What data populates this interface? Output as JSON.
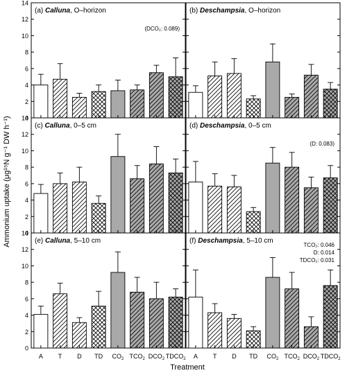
{
  "figure": {
    "ylabel": "Ammonium uptake (μg¹⁵N g⁻¹ DW h⁻¹)",
    "xlabel": "Treatment"
  },
  "chart_data": [
    {
      "type": "bar",
      "panel": "(a)",
      "species": "Calluna",
      "depth": "O–horizon",
      "annotation": [
        "(DCO₂: 0.089)"
      ],
      "categories": [
        "A",
        "T",
        "D",
        "TD",
        "CO₂",
        "TCO₂",
        "DCO₂",
        "TDCO₂"
      ],
      "values": [
        4.0,
        4.7,
        2.5,
        3.2,
        3.3,
        3.4,
        5.5,
        5.0
      ],
      "errors": [
        1.3,
        1.9,
        0.5,
        0.8,
        1.3,
        0.6,
        0.9,
        2.3
      ],
      "ylim": [
        0,
        14
      ],
      "yticks": [
        0,
        2,
        4,
        6,
        8,
        10,
        12,
        14
      ]
    },
    {
      "type": "bar",
      "panel": "(b)",
      "species": "Deschampsia",
      "depth": "O–horizon",
      "annotation": [],
      "categories": [
        "A",
        "T",
        "D",
        "TD",
        "CO₂",
        "TCO₂",
        "DCO₂",
        "TDCO₂"
      ],
      "values": [
        3.1,
        5.1,
        5.4,
        2.3,
        6.8,
        2.5,
        5.2,
        3.5
      ],
      "errors": [
        0.8,
        1.7,
        1.8,
        0.4,
        2.2,
        0.4,
        1.3,
        0.8
      ],
      "ylim": [
        0,
        14
      ],
      "yticks": [
        0,
        2,
        4,
        6,
        8,
        10,
        12,
        14
      ]
    },
    {
      "type": "bar",
      "panel": "(c)",
      "species": "Calluna",
      "depth": "0–5 cm",
      "annotation": [],
      "categories": [
        "A",
        "T",
        "D",
        "TD",
        "CO₂",
        "TCO₂",
        "DCO₂",
        "TDCO₂"
      ],
      "values": [
        4.8,
        6.0,
        6.2,
        3.6,
        9.3,
        6.6,
        8.4,
        7.3
      ],
      "errors": [
        1.1,
        1.3,
        1.8,
        0.9,
        2.7,
        1.6,
        2.1,
        1.7
      ],
      "ylim": [
        0,
        14
      ],
      "yticks": [
        0,
        2,
        4,
        6,
        8,
        10,
        12,
        14
      ]
    },
    {
      "type": "bar",
      "panel": "(d)",
      "species": "Deschampsia",
      "depth": "0–5 cm",
      "annotation": [
        "(D: 0.083)"
      ],
      "categories": [
        "A",
        "T",
        "D",
        "TD",
        "CO₂",
        "TCO₂",
        "DCO₂",
        "TDCO₂"
      ],
      "values": [
        6.2,
        5.7,
        5.6,
        2.6,
        8.5,
        8.0,
        5.5,
        6.7
      ],
      "errors": [
        2.5,
        1.5,
        1.4,
        0.5,
        1.9,
        1.8,
        1.3,
        1.5
      ],
      "ylim": [
        0,
        14
      ],
      "yticks": [
        0,
        2,
        4,
        6,
        8,
        10,
        12,
        14
      ]
    },
    {
      "type": "bar",
      "panel": "(e)",
      "species": "Calluna",
      "depth": "5–10 cm",
      "annotation": [],
      "categories": [
        "A",
        "T",
        "D",
        "TD",
        "CO₂",
        "TCO₂",
        "DCO₂",
        "TDCO₂"
      ],
      "values": [
        4.1,
        6.6,
        3.1,
        5.1,
        9.2,
        6.8,
        6.0,
        6.2
      ],
      "errors": [
        1.0,
        1.3,
        0.6,
        1.8,
        2.5,
        1.8,
        2.0,
        1.0
      ],
      "ylim": [
        0,
        14
      ],
      "yticks": [
        0,
        2,
        4,
        6,
        8,
        10,
        12,
        14
      ]
    },
    {
      "type": "bar",
      "panel": "(f)",
      "species": "Deschampsia",
      "depth": "5–10 cm",
      "annotation": [
        "TCO₂:   0.046",
        "D:   0.014",
        "TDCO₂: 0.031"
      ],
      "categories": [
        "A",
        "T",
        "D",
        "TD",
        "CO₂",
        "TCO₂",
        "DCO₂",
        "TDCO₂"
      ],
      "values": [
        6.2,
        4.3,
        3.6,
        2.1,
        8.6,
        7.2,
        2.6,
        7.6
      ],
      "errors": [
        3.3,
        1.1,
        0.5,
        0.5,
        2.4,
        2.0,
        1.2,
        1.9
      ],
      "ylim": [
        0,
        14
      ],
      "yticks": [
        0,
        2,
        4,
        6,
        8,
        10,
        12,
        14
      ]
    }
  ]
}
